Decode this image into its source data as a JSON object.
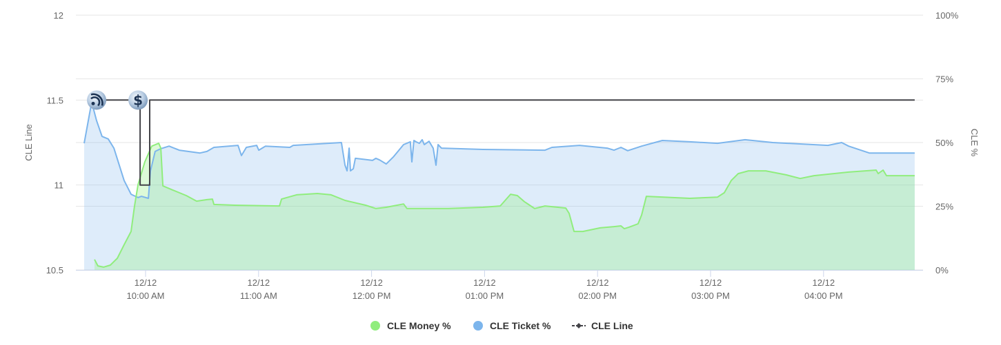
{
  "chart_data": {
    "type": "area",
    "title": "",
    "xlabel": "",
    "ylabel_left": "CLE Line",
    "ylabel_right": "CLE %",
    "x_unit": "minutes after 9:00 AM",
    "x_range": [
      27,
      469
    ],
    "x_ticks": [
      {
        "value": 60,
        "date": "12/12",
        "time": "10:00 AM"
      },
      {
        "value": 120,
        "date": "12/12",
        "time": "11:00 AM"
      },
      {
        "value": 180,
        "date": "12/12",
        "time": "12:00 PM"
      },
      {
        "value": 240,
        "date": "12/12",
        "time": "01:00 PM"
      },
      {
        "value": 300,
        "date": "12/12",
        "time": "02:00 PM"
      },
      {
        "value": 360,
        "date": "12/12",
        "time": "03:00 PM"
      },
      {
        "value": 420,
        "date": "12/12",
        "time": "04:00 PM"
      }
    ],
    "y_left": {
      "range": [
        10.5,
        12
      ],
      "ticks": [
        "10.5",
        "11",
        "11.5",
        "12"
      ]
    },
    "y_right": {
      "range": [
        0,
        100
      ],
      "ticks": [
        "0%",
        "25%",
        "50%",
        "75%",
        "100%"
      ]
    },
    "grid": true,
    "legend_position": "bottom-center",
    "series": [
      {
        "name": "CLE Money %",
        "axis": "right",
        "color": "#90ed7d",
        "kind": "area",
        "points": [
          [
            32.9,
            4.1
          ],
          [
            34.7,
            1.6
          ],
          [
            37.7,
            1.1
          ],
          [
            41.3,
            1.9
          ],
          [
            45.0,
            4.6
          ],
          [
            48.6,
            9.9
          ],
          [
            52.3,
            15.1
          ],
          [
            54.1,
            24.9
          ],
          [
            56.0,
            33.5
          ],
          [
            59.6,
            42.4
          ],
          [
            63.3,
            48.6
          ],
          [
            67.0,
            49.7
          ],
          [
            68.1,
            47.8
          ],
          [
            69.2,
            33.0
          ],
          [
            74.3,
            31.4
          ],
          [
            81.6,
            29.2
          ],
          [
            87.1,
            27.0
          ],
          [
            92.6,
            27.6
          ],
          [
            95.5,
            27.8
          ],
          [
            96.3,
            25.7
          ],
          [
            107.3,
            25.4
          ],
          [
            131.1,
            25.1
          ],
          [
            132.2,
            27.8
          ],
          [
            140.2,
            29.5
          ],
          [
            151.2,
            30.0
          ],
          [
            158.5,
            29.5
          ],
          [
            165.9,
            27.3
          ],
          [
            176.8,
            25.4
          ],
          [
            182.3,
            24.1
          ],
          [
            187.8,
            24.6
          ],
          [
            197.0,
            25.9
          ],
          [
            198.8,
            24.1
          ],
          [
            220.8,
            24.1
          ],
          [
            239.1,
            24.6
          ],
          [
            248.3,
            25.1
          ],
          [
            253.8,
            29.7
          ],
          [
            257.4,
            29.2
          ],
          [
            261.1,
            26.8
          ],
          [
            266.6,
            24.1
          ],
          [
            272.1,
            25.1
          ],
          [
            283.1,
            24.3
          ],
          [
            284.9,
            22.2
          ],
          [
            287.5,
            15.1
          ],
          [
            292.2,
            15.1
          ],
          [
            301.4,
            16.5
          ],
          [
            308.7,
            17.0
          ],
          [
            312.4,
            17.3
          ],
          [
            314.2,
            16.2
          ],
          [
            316.8,
            16.8
          ],
          [
            321.5,
            18.1
          ],
          [
            323.4,
            21.6
          ],
          [
            325.9,
            28.9
          ],
          [
            349.0,
            28.1
          ],
          [
            363.7,
            28.6
          ],
          [
            367.3,
            30.3
          ],
          [
            371.0,
            35.1
          ],
          [
            374.7,
            37.8
          ],
          [
            380.1,
            38.9
          ],
          [
            389.3,
            38.9
          ],
          [
            400.3,
            37.3
          ],
          [
            407.6,
            35.9
          ],
          [
            414.9,
            37.0
          ],
          [
            433.3,
            38.4
          ],
          [
            447.9,
            39.2
          ],
          [
            449.0,
            37.8
          ],
          [
            451.6,
            39.2
          ],
          [
            453.4,
            37.0
          ],
          [
            468.4,
            37.0
          ]
        ]
      },
      {
        "name": "CLE Ticket %",
        "axis": "right",
        "color": "#7cb5ec",
        "kind": "area",
        "points": [
          [
            27.4,
            49.7
          ],
          [
            31.4,
            65.9
          ],
          [
            34.0,
            58.6
          ],
          [
            36.9,
            52.4
          ],
          [
            40.2,
            51.4
          ],
          [
            43.2,
            47.8
          ],
          [
            48.6,
            35.1
          ],
          [
            52.3,
            29.7
          ],
          [
            56.0,
            28.4
          ],
          [
            57.8,
            28.9
          ],
          [
            61.5,
            28.1
          ],
          [
            62.6,
            38.9
          ],
          [
            65.1,
            46.5
          ],
          [
            68.1,
            47.6
          ],
          [
            72.5,
            48.6
          ],
          [
            77.9,
            47.0
          ],
          [
            88.9,
            45.9
          ],
          [
            92.6,
            46.5
          ],
          [
            96.3,
            48.1
          ],
          [
            109.1,
            48.9
          ],
          [
            110.9,
            44.9
          ],
          [
            113.5,
            48.1
          ],
          [
            119.0,
            48.9
          ],
          [
            120.1,
            47.0
          ],
          [
            123.7,
            48.6
          ],
          [
            136.6,
            48.1
          ],
          [
            138.4,
            48.9
          ],
          [
            164.0,
            50.0
          ],
          [
            165.9,
            41.1
          ],
          [
            167.0,
            38.9
          ],
          [
            168.1,
            47.8
          ],
          [
            168.8,
            38.9
          ],
          [
            170.3,
            39.7
          ],
          [
            171.4,
            43.8
          ],
          [
            180.5,
            43.0
          ],
          [
            182.3,
            43.8
          ],
          [
            184.2,
            43.2
          ],
          [
            187.8,
            41.6
          ],
          [
            191.5,
            44.3
          ],
          [
            197.0,
            49.2
          ],
          [
            200.6,
            50.3
          ],
          [
            201.4,
            42.4
          ],
          [
            202.5,
            50.8
          ],
          [
            203.6,
            50.3
          ],
          [
            205.4,
            49.7
          ],
          [
            206.9,
            51.1
          ],
          [
            208.0,
            49.2
          ],
          [
            210.5,
            50.5
          ],
          [
            212.7,
            47.8
          ],
          [
            214.2,
            41.1
          ],
          [
            215.3,
            49.2
          ],
          [
            217.1,
            47.8
          ],
          [
            239.1,
            47.3
          ],
          [
            272.1,
            47.0
          ],
          [
            275.8,
            48.1
          ],
          [
            290.4,
            48.9
          ],
          [
            305.1,
            47.8
          ],
          [
            308.7,
            47.0
          ],
          [
            312.4,
            48.1
          ],
          [
            316.0,
            46.8
          ],
          [
            323.4,
            48.6
          ],
          [
            334.4,
            50.8
          ],
          [
            349.0,
            50.3
          ],
          [
            363.7,
            49.7
          ],
          [
            378.3,
            51.1
          ],
          [
            393.0,
            50.0
          ],
          [
            422.3,
            48.9
          ],
          [
            429.6,
            50.0
          ],
          [
            433.3,
            48.6
          ],
          [
            444.3,
            45.9
          ],
          [
            451.6,
            45.9
          ],
          [
            468.4,
            45.9
          ]
        ]
      },
      {
        "name": "CLE Line",
        "axis": "left",
        "color": "#434348",
        "kind": "step",
        "points": [
          [
            30.3,
            11.5
          ],
          [
            57.1,
            11.5
          ],
          [
            57.1,
            11.0
          ],
          [
            62.2,
            11.0
          ],
          [
            62.2,
            11.5
          ],
          [
            468.4,
            11.5
          ]
        ]
      }
    ],
    "flags": [
      {
        "icon": "rss-icon",
        "x": 34.0,
        "y": 11.5
      },
      {
        "icon": "dollar-icon",
        "x": 56.0,
        "y": 11.5
      }
    ]
  },
  "legend": [
    {
      "label": "CLE Money %",
      "color": "#90ed7d",
      "symbol": "circle"
    },
    {
      "label": "CLE Ticket %",
      "color": "#7cb5ec",
      "symbol": "circle"
    },
    {
      "label": "CLE Line",
      "color": "#434348",
      "symbol": "line-diamond"
    }
  ]
}
